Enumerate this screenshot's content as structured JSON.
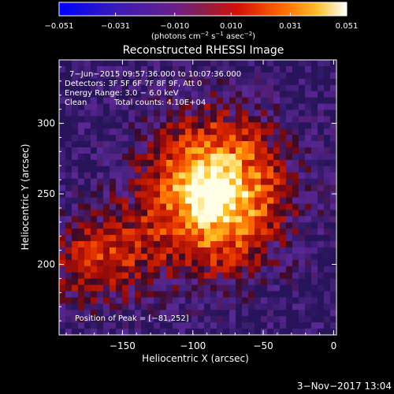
{
  "chart_data": {
    "type": "heatmap",
    "title": "Reconstructed RHESSI Image",
    "xlabel": "Heliocentric X (arcsec)",
    "ylabel": "Heliocentric Y (arcsec)",
    "xlim": [
      -195,
      2
    ],
    "ylim": [
      150,
      345
    ],
    "xticks": [
      -150,
      -100,
      -50,
      0
    ],
    "yticks": [
      200,
      250,
      300
    ],
    "xtick_labels": [
      "−150",
      "−100",
      "−50",
      "0"
    ],
    "ytick_labels": [
      "200",
      "250",
      "300"
    ],
    "colorbar": {
      "range": [
        -0.051,
        0.051
      ],
      "ticks": [
        -0.051,
        -0.031,
        -0.01,
        0.01,
        0.031,
        0.051
      ],
      "tick_labels": [
        "−0.051",
        "−0.031",
        "−0.010",
        "0.010",
        "0.031",
        "0.051"
      ],
      "unit_main": "(photons cm",
      "unit_sup1": "−2",
      "unit_mid": " s",
      "unit_sup2": "−1",
      "unit_mid2": " asec",
      "unit_sup3": "−2",
      "unit_end": ")"
    },
    "annotations": {
      "time": "7−Jun−2015 09:57:36.000 to 10:07:36.000",
      "detectors": "Detectors: 3F 5F 6F 7F 8F 9F, Att 0",
      "energy": "Energy Range: 3.0 − 6.0 keV",
      "method": "Clean",
      "counts": "Total counts: 4.10E+04",
      "peak": "Position of Peak = [−81,252]"
    },
    "peak": {
      "x": -81,
      "y": 252
    },
    "datestamp": "3−Nov−2017 13:04"
  }
}
